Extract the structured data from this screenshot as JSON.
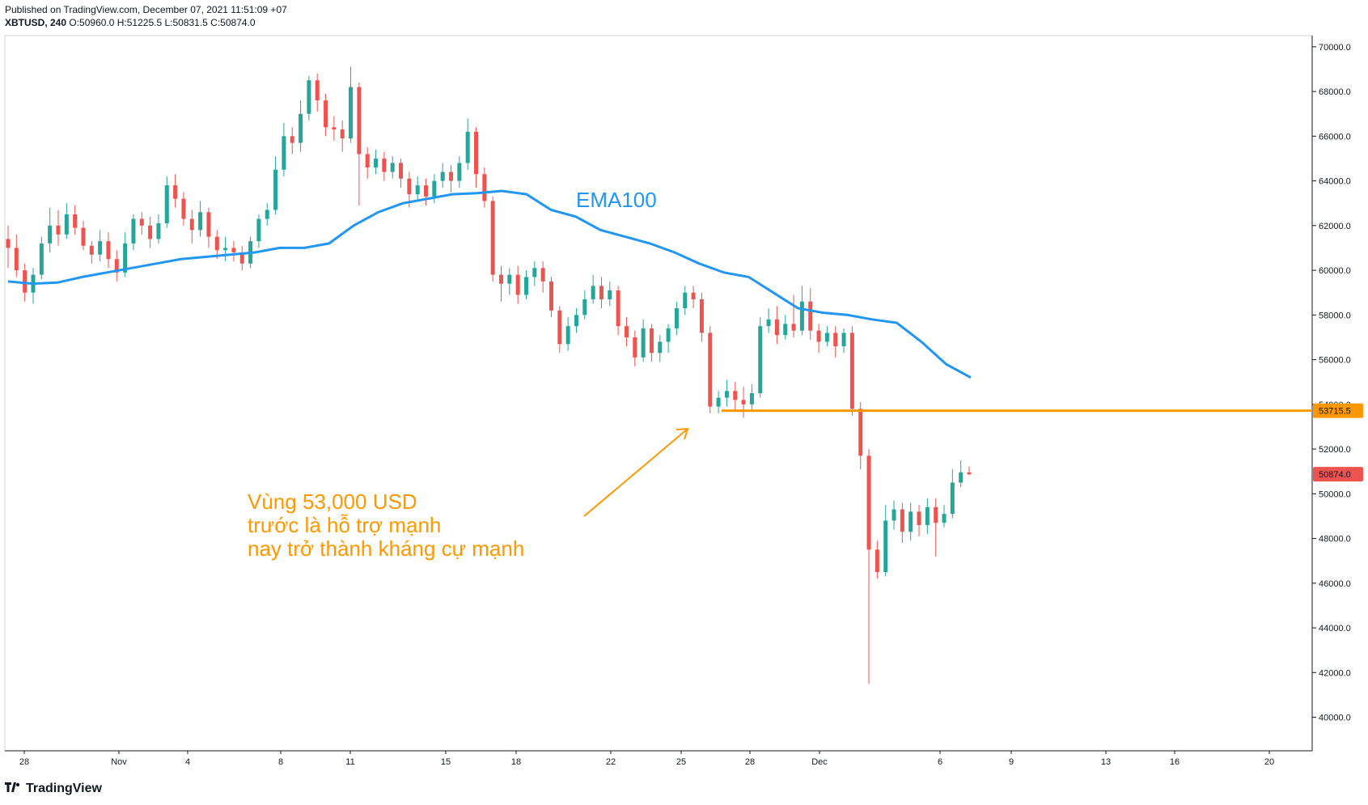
{
  "header": {
    "published": "Published on TradingView.com, December 07, 2021 11:51:09 +07",
    "symbol": "XBTUSD, 240",
    "ohlc": "O:50960.0 H:51225.5 L:50831.5 C:50874.0"
  },
  "footer": {
    "logo_text": "TradingView"
  },
  "annotations": {
    "ema_label": "EMA100",
    "support_text": [
      "Vùng 53,000 USD",
      "trước là hỗ trợ mạnh",
      "nay trở thành kháng cự mạnh"
    ]
  },
  "chart_data": {
    "type": "candlestick",
    "symbol": "XBTUSD",
    "timeframe": "240",
    "y_axis": {
      "min": 38500,
      "max": 70500,
      "ticks": [
        40000,
        42000,
        44000,
        46000,
        48000,
        50000,
        52000,
        54000,
        56000,
        58000,
        60000,
        62000,
        64000,
        66000,
        68000,
        70000
      ],
      "tick_labels": [
        "40000.0",
        "42000.0",
        "44000.0",
        "46000.0",
        "48000.0",
        "50000.0",
        "52000.0",
        "54000.0",
        "56000.0",
        "58000.0",
        "60000.0",
        "62000.0",
        "64000.0",
        "66000.0",
        "68000.0",
        "70000.0"
      ]
    },
    "x_axis": {
      "tick_labels": [
        "28",
        "Nov",
        "4",
        "8",
        "11",
        "15",
        "18",
        "22",
        "25",
        "28",
        "Dec",
        "6",
        "9",
        "13",
        "16",
        "20"
      ]
    },
    "horizontal_line": {
      "value": 53715.5,
      "label": "53715.5",
      "color": "#ff9800"
    },
    "last_price": {
      "value": 50874.0,
      "label": "50874.0",
      "color": "#ef5350"
    },
    "ema100": [
      59500,
      59400,
      59450,
      59700,
      59900,
      60100,
      60300,
      60500,
      60600,
      60700,
      60800,
      61000,
      61000,
      61200,
      62000,
      62600,
      63000,
      63200,
      63400,
      63450,
      63550,
      63400,
      62700,
      62400,
      61800,
      61500,
      61200,
      60800,
      60300,
      59900,
      59700,
      59000,
      58300,
      58100,
      58000,
      57800,
      57650,
      56800,
      55800,
      55200
    ],
    "candles_description": "4h candles from late Oct to Dec 7, 2021",
    "ohlc_series": [
      [
        61400,
        61000,
        62000,
        60100
      ],
      [
        61000,
        60000,
        61600,
        59700
      ],
      [
        60000,
        59000,
        60300,
        58600
      ],
      [
        59000,
        59800,
        60100,
        58500
      ],
      [
        59800,
        61200,
        61500,
        59600
      ],
      [
        61200,
        62000,
        62800,
        60800
      ],
      [
        62000,
        61600,
        62700,
        61100
      ],
      [
        61600,
        62500,
        63000,
        61400
      ],
      [
        62500,
        61900,
        62900,
        61600
      ],
      [
        61900,
        61100,
        62200,
        60900
      ],
      [
        61100,
        60700,
        61300,
        60300
      ],
      [
        60700,
        61300,
        61800,
        60400
      ],
      [
        61300,
        60500,
        61700,
        60100
      ],
      [
        60500,
        59900,
        60900,
        59500
      ],
      [
        59900,
        61200,
        61700,
        59700
      ],
      [
        61200,
        62300,
        62500,
        60900
      ],
      [
        62300,
        62000,
        62600,
        61600
      ],
      [
        62000,
        61400,
        62400,
        61000
      ],
      [
        61400,
        62100,
        62500,
        61200
      ],
      [
        62100,
        63800,
        64200,
        61900
      ],
      [
        63800,
        63200,
        64300,
        62800
      ],
      [
        63200,
        62300,
        63500,
        62000
      ],
      [
        62300,
        61800,
        62700,
        61200
      ],
      [
        61800,
        62600,
        63100,
        61500
      ],
      [
        62600,
        61500,
        62800,
        61000
      ],
      [
        61500,
        60900,
        61800,
        60500
      ],
      [
        60900,
        61000,
        61500,
        60400
      ],
      [
        61000,
        60800,
        61300,
        60400
      ],
      [
        60800,
        60300,
        61100,
        60000
      ],
      [
        60300,
        61300,
        61500,
        60100
      ],
      [
        61300,
        62300,
        62500,
        61000
      ],
      [
        62300,
        62700,
        63000,
        62000
      ],
      [
        62700,
        64500,
        65100,
        62500
      ],
      [
        64500,
        66000,
        66600,
        64200
      ],
      [
        66000,
        65700,
        66400,
        65200
      ],
      [
        65700,
        67000,
        67600,
        65300
      ],
      [
        67000,
        68500,
        68700,
        66700
      ],
      [
        68500,
        67600,
        68800,
        67100
      ],
      [
        67600,
        66400,
        67900,
        66000
      ],
      [
        66400,
        66300,
        66900,
        65800
      ],
      [
        66300,
        65900,
        66700,
        65300
      ],
      [
        65900,
        68200,
        69100,
        65700
      ],
      [
        68200,
        65200,
        68400,
        62900
      ],
      [
        65200,
        64600,
        65500,
        64100
      ],
      [
        64600,
        65000,
        65400,
        64300
      ],
      [
        65000,
        64400,
        65300,
        64000
      ],
      [
        64400,
        64800,
        65100,
        64100
      ],
      [
        64800,
        64100,
        65000,
        63700
      ],
      [
        64100,
        63400,
        64400,
        62800
      ],
      [
        63400,
        63800,
        64200,
        63100
      ],
      [
        63800,
        63300,
        64100,
        62900
      ],
      [
        63300,
        64000,
        64300,
        63000
      ],
      [
        64000,
        64400,
        64800,
        63700
      ],
      [
        64400,
        64000,
        64700,
        63500
      ],
      [
        64000,
        64800,
        65100,
        63700
      ],
      [
        64800,
        66200,
        66800,
        64500
      ],
      [
        66200,
        64300,
        66400,
        63700
      ],
      [
        64300,
        63100,
        64600,
        62800
      ],
      [
        63100,
        59800,
        63300,
        59500
      ],
      [
        59800,
        59400,
        60200,
        58600
      ],
      [
        59400,
        59800,
        60100,
        58900
      ],
      [
        59800,
        58900,
        60200,
        58500
      ],
      [
        58900,
        59700,
        60000,
        58700
      ],
      [
        59700,
        60100,
        60400,
        59300
      ],
      [
        60100,
        59500,
        60400,
        59000
      ],
      [
        59500,
        58200,
        59700,
        57900
      ],
      [
        58200,
        56700,
        58400,
        56300
      ],
      [
        56700,
        57500,
        57900,
        56400
      ],
      [
        57500,
        58000,
        58300,
        57200
      ],
      [
        58000,
        58700,
        59100,
        57800
      ],
      [
        58700,
        59300,
        59800,
        58500
      ],
      [
        59300,
        58700,
        59700,
        58300
      ],
      [
        58700,
        59100,
        59500,
        58400
      ],
      [
        59100,
        57500,
        59300,
        57100
      ],
      [
        57500,
        57000,
        57900,
        56600
      ],
      [
        57000,
        56100,
        57300,
        55700
      ],
      [
        56100,
        57400,
        57800,
        55900
      ],
      [
        57400,
        56300,
        57600,
        55900
      ],
      [
        56300,
        56800,
        57100,
        55900
      ],
      [
        56800,
        57400,
        57600,
        56300
      ],
      [
        57400,
        58300,
        58600,
        57100
      ],
      [
        58300,
        59000,
        59300,
        58000
      ],
      [
        59000,
        58700,
        59300,
        58300
      ],
      [
        58700,
        57200,
        59000,
        56800
      ],
      [
        57200,
        53900,
        57500,
        53600
      ],
      [
        53900,
        54300,
        54600,
        53600
      ],
      [
        54300,
        54600,
        55100,
        53900
      ],
      [
        54600,
        54200,
        55000,
        53700
      ],
      [
        54200,
        54000,
        54800,
        53400
      ],
      [
        54000,
        54500,
        54900,
        53700
      ],
      [
        54500,
        57500,
        57900,
        54300
      ],
      [
        57500,
        57800,
        58300,
        57200
      ],
      [
        57800,
        57100,
        58400,
        56700
      ],
      [
        57100,
        57600,
        58000,
        56900
      ],
      [
        57600,
        57300,
        58900,
        57000
      ],
      [
        57300,
        58600,
        59300,
        57100
      ],
      [
        58600,
        57300,
        59200,
        56900
      ],
      [
        57300,
        56800,
        57600,
        56300
      ],
      [
        56800,
        57200,
        57500,
        56600
      ],
      [
        57200,
        56600,
        57500,
        56100
      ],
      [
        56600,
        57200,
        57400,
        56300
      ],
      [
        57200,
        53800,
        57500,
        53500
      ],
      [
        53800,
        51700,
        54100,
        51100
      ],
      [
        51700,
        47500,
        52000,
        41500
      ],
      [
        47500,
        46500,
        47900,
        46200
      ],
      [
        46500,
        48800,
        49500,
        46300
      ],
      [
        48800,
        49300,
        49700,
        48400
      ],
      [
        49300,
        48300,
        49600,
        47800
      ],
      [
        48300,
        49200,
        49600,
        47900
      ],
      [
        49200,
        48600,
        49500,
        48100
      ],
      [
        48600,
        49400,
        49800,
        48200
      ],
      [
        49400,
        48700,
        49800,
        47200
      ],
      [
        48700,
        49100,
        49500,
        48500
      ],
      [
        49100,
        50500,
        51100,
        48900
      ],
      [
        50500,
        50960,
        51500,
        50300
      ],
      [
        50960,
        50874,
        51225.5,
        50831.5
      ]
    ]
  }
}
